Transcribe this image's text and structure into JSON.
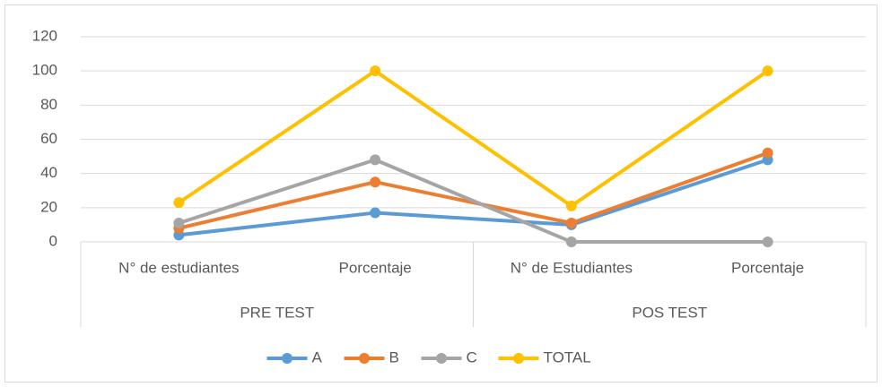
{
  "chart_data": {
    "type": "line",
    "categories": [
      "N° de estudiantes",
      "Porcentaje",
      "N° de Estudiantes",
      "Porcentaje"
    ],
    "groups": [
      "PRE TEST",
      "POS TEST"
    ],
    "series": [
      {
        "name": "A",
        "color": "#5b9bd5",
        "values": [
          4,
          17,
          10,
          48
        ]
      },
      {
        "name": "B",
        "color": "#ed7d31",
        "values": [
          8,
          35,
          11,
          52
        ]
      },
      {
        "name": "C",
        "color": "#a5a5a5",
        "values": [
          11,
          48,
          0,
          0
        ]
      },
      {
        "name": "TOTAL",
        "color": "#ffc000",
        "values": [
          23,
          100,
          21,
          100
        ]
      }
    ],
    "ylim": [
      0,
      120
    ],
    "yticks": [
      0,
      20,
      40,
      60,
      80,
      100,
      120
    ],
    "grid": true,
    "legend": "bottom"
  }
}
